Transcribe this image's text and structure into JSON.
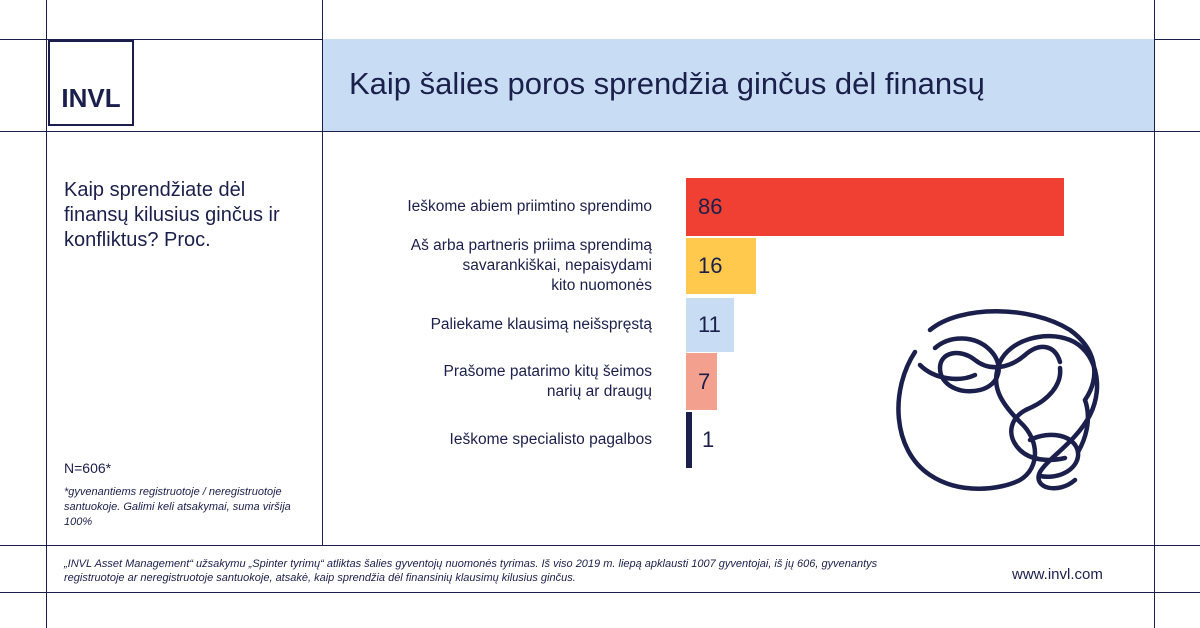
{
  "brand": {
    "logo_text": "INVL",
    "website": "www.invl.com"
  },
  "header": {
    "title": "Kaip šalies poros sprendžia ginčus dėl finansų"
  },
  "question": "Kaip sprendžiate dėl finansų kilusius ginčus ir konfliktus? Proc.",
  "sample": "N=606*",
  "note": "*gyvenantiems registruotoje / neregistruotoje santuokoje. Galimi keli atsakymai, suma viršija 100%",
  "footer": "„INVL Asset Management“ užsakymu „Spinter tyrimų“ atliktas šalies gyventojų nuomonės tyrimas. Iš viso 2019 m. liepą apklausti 1007 gyventojai, iš jų 606, gyvenantys registruotoje ar neregistruotoje santuokoje, atsakė, kaip sprendžia dėl finansinių klausimų kilusius ginčus.",
  "chart_data": {
    "type": "bar",
    "orientation": "horizontal",
    "categories": [
      "Ieškome abiem priimtino sprendimo",
      "Aš arba partneris priima sprendimą savarankiškai, nepaisydami kito nuomonės",
      "Paliekame klausimą neišspręstą",
      "Prašome patarimo kitų šeimos narių ar draugų",
      "Ieškome specialisto pagalbos"
    ],
    "category_lines": [
      [
        "Ieškome abiem priimtino sprendimo"
      ],
      [
        "Aš arba partneris priima sprendimą",
        "savarankiškai, nepaisydami",
        "kito nuomonės"
      ],
      [
        "Paliekame klausimą neišspręstą"
      ],
      [
        "Prašome patarimo kitų šeimos",
        "narių ar draugų"
      ],
      [
        "Ieškome specialisto pagalbos"
      ]
    ],
    "values": [
      86,
      16,
      11,
      7,
      1
    ],
    "value_labels": [
      "86",
      "16",
      "11",
      "7",
      "1"
    ],
    "colors": [
      "#ef4033",
      "#ffc94d",
      "#c8ddf3",
      "#f4a08e",
      "#1b1f4b"
    ],
    "xlim": [
      0,
      100
    ],
    "grid": false,
    "legend": "none"
  }
}
